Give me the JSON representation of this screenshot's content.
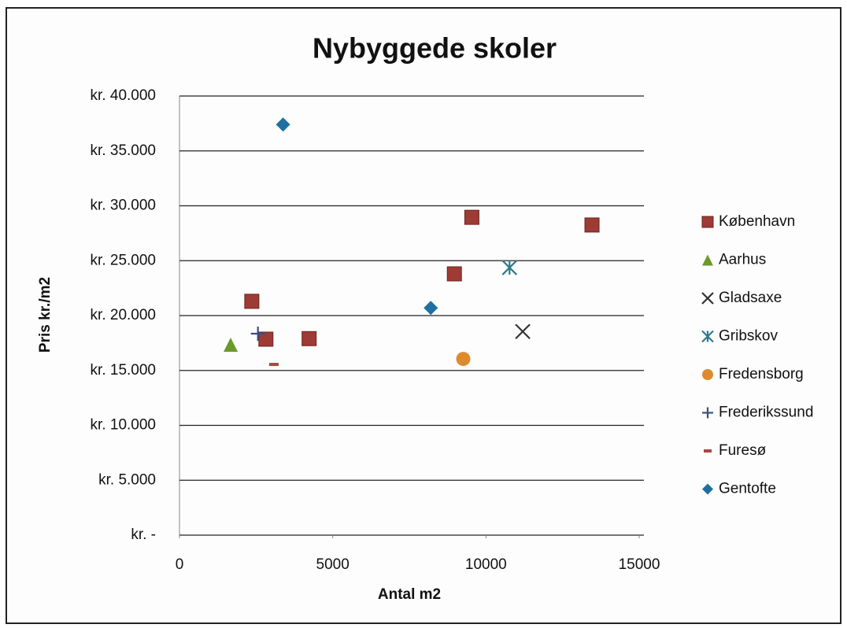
{
  "chart_data": {
    "type": "scatter",
    "title": "Nybyggede skoler",
    "x_label": "Antal m2",
    "y_label": "Pris kr./m2",
    "xlim": [
      0,
      15000
    ],
    "xticks": [
      0,
      5000,
      10000,
      15000
    ],
    "ylim": [
      0,
      40000
    ],
    "yticks": [
      {
        "value": 0,
        "label": "kr. -"
      },
      {
        "value": 5000,
        "label": "kr. 5.000"
      },
      {
        "value": 10000,
        "label": "kr. 10.000"
      },
      {
        "value": 15000,
        "label": "kr. 15.000"
      },
      {
        "value": 20000,
        "label": "kr. 20.000"
      },
      {
        "value": 25000,
        "label": "kr. 25.000"
      },
      {
        "value": 30000,
        "label": "kr. 30.000"
      },
      {
        "value": 35000,
        "label": "kr. 35.000"
      },
      {
        "value": 40000,
        "label": "kr. 40.000"
      }
    ],
    "grid": true,
    "legend": "right",
    "series": [
      {
        "name": "København",
        "color": "#9e3b34",
        "marker": "square",
        "x": [
          2360,
          2820,
          4230,
          8970,
          9540,
          13460
        ],
        "y": [
          21300,
          17850,
          17900,
          23800,
          28950,
          28250
        ]
      },
      {
        "name": "Aarhus",
        "color": "#6a9a2a",
        "marker": "triangle",
        "x": [
          1670
        ],
        "y": [
          17350
        ]
      },
      {
        "name": "Gladsaxe",
        "color": "#333333",
        "marker": "x",
        "x": [
          11200
        ],
        "y": [
          18550
        ]
      },
      {
        "name": "Gribskov",
        "color": "#2e7a8a",
        "marker": "asterisk",
        "x": [
          10770
        ],
        "y": [
          24370
        ]
      },
      {
        "name": "Fredensborg",
        "color": "#e08a2e",
        "marker": "circle",
        "x": [
          9260
        ],
        "y": [
          16050
        ]
      },
      {
        "name": "Frederikssund",
        "color": "#3b4f80",
        "marker": "plus",
        "x": [
          2560
        ],
        "y": [
          18350
        ]
      },
      {
        "name": "Furesø",
        "color": "#b0443c",
        "marker": "dash",
        "x": [
          3080
        ],
        "y": [
          15550
        ]
      },
      {
        "name": "Gentofte",
        "color": "#1f6fa0",
        "marker": "diamond",
        "x": [
          3380,
          8200
        ],
        "y": [
          37400,
          20700
        ]
      }
    ]
  }
}
